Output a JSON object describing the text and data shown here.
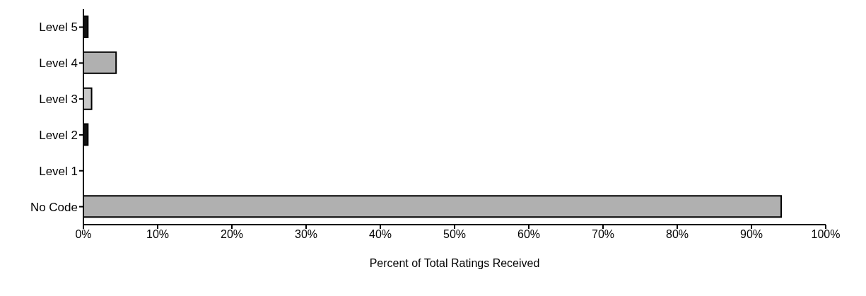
{
  "chart_data": {
    "type": "bar",
    "orientation": "horizontal",
    "categories": [
      "Level 5",
      "Level 4",
      "Level 3",
      "Level 2",
      "Level 1",
      "No Code"
    ],
    "values": [
      0.6,
      4.4,
      1.1,
      0.6,
      0,
      94.0
    ],
    "colors": [
      "#111111",
      "#b0b0b0",
      "#c8c8c8",
      "#111111",
      "#111111",
      "#b0b0b0"
    ],
    "xlim": [
      0,
      100
    ],
    "xticks": [
      {
        "value": 0,
        "label": "0%"
      },
      {
        "value": 10,
        "label": "10%"
      },
      {
        "value": 20,
        "label": "20%"
      },
      {
        "value": 30,
        "label": "30%"
      },
      {
        "value": 40,
        "label": "40%"
      },
      {
        "value": 50,
        "label": "50%"
      },
      {
        "value": 60,
        "label": "60%"
      },
      {
        "value": 70,
        "label": "70%"
      },
      {
        "value": 80,
        "label": "80%"
      },
      {
        "value": 90,
        "label": "90%"
      },
      {
        "value": 100,
        "label": "100%"
      }
    ],
    "xlabel": "Percent of Total Ratings Received",
    "grid": false,
    "legend": false
  }
}
